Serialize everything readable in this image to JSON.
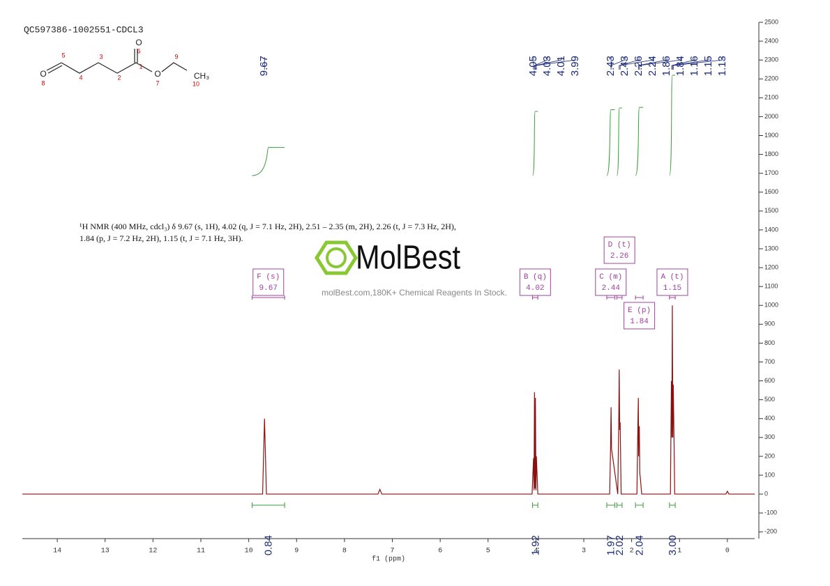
{
  "chart_data": {
    "type": "line",
    "title": "QC597386-1002551-CDCL3",
    "x_label": "f1 (ppm)",
    "description": "¹H NMR (400 MHz, cdcl₃) δ 9.67 (s, 1H), 4.02 (q, J = 7.1 Hz, 2H), 2.51 – 2.35 (m, 2H), 2.26 (t, J = 7.3 Hz, 2H), 1.84 (p, J = 7.2 Hz, 2H), 1.15 (t, J = 7.1 Hz, 3H).",
    "watermark": {
      "name": "MolBest",
      "tagline": "molBest.com,180K+ Chemical Reagents In Stock."
    },
    "structure": {
      "atoms": [
        "O",
        "8",
        "5",
        "4",
        "3",
        "2",
        "1",
        "O",
        "6",
        "O",
        "7",
        "9",
        "CH₃",
        "10"
      ]
    },
    "xlim": [
      14.73,
      -0.57
    ],
    "xticks": [
      14,
      13,
      12,
      11,
      10,
      9,
      8,
      7,
      6,
      5,
      4,
      3,
      2,
      1,
      0
    ],
    "ylim": [
      -236,
      2500
    ],
    "yticks": [
      -200,
      -100,
      0,
      100,
      200,
      300,
      400,
      500,
      600,
      700,
      800,
      900,
      1000,
      1100,
      1200,
      1300,
      1400,
      1500,
      1600,
      1700,
      1800,
      1900,
      2000,
      2100,
      2200,
      2300,
      2400,
      2500
    ],
    "series": [
      {
        "name": "spectrum",
        "color": "#8b1010",
        "x": [
          14.73,
          9.71,
          9.67,
          9.63,
          7.3,
          7.26,
          7.22,
          4.08,
          4.05,
          4.04,
          4.03,
          4.02,
          4.01,
          4.0,
          3.99,
          3.96,
          2.46,
          2.44,
          2.43,
          2.42,
          2.29,
          2.27,
          2.26,
          2.25,
          2.24,
          2.22,
          1.89,
          1.87,
          1.86,
          1.855,
          1.85,
          1.84,
          1.83,
          1.82,
          1.79,
          1.19,
          1.17,
          1.16,
          1.15,
          1.14,
          1.13,
          1.1,
          0.03,
          0,
          -0.03,
          -0.57
        ],
        "values": [
          0,
          0,
          400,
          0,
          0,
          25,
          0,
          0,
          190,
          20,
          540,
          30,
          510,
          20,
          200,
          0,
          0,
          250,
          460,
          240,
          0,
          380,
          660,
          340,
          380,
          0,
          0,
          370,
          510,
          200,
          330,
          360,
          110,
          90,
          0,
          0,
          600,
          300,
          1000,
          300,
          580,
          0,
          0,
          15,
          0,
          0
        ]
      }
    ],
    "peaks": [
      9.67,
      4.05,
      4.03,
      4.01,
      3.99,
      2.43,
      2.43,
      2.26,
      2.24,
      1.86,
      1.84,
      1.16,
      1.15,
      1.13
    ],
    "integrals": {
      "values": [
        0.84,
        1.92,
        1.97,
        2.02,
        2.04,
        3.0
      ],
      "value_labels": [
        "0.84",
        "1.92",
        "1.97",
        "2.02",
        "2.04",
        "3.00"
      ],
      "ranges": [
        [
          9.93,
          9.25
        ],
        [
          4.07,
          3.96
        ],
        [
          2.52,
          2.35
        ],
        [
          2.31,
          2.2
        ],
        [
          1.92,
          1.76
        ],
        [
          1.21,
          1.09
        ]
      ]
    },
    "multiplets": [
      {
        "name": "F (s)",
        "shift": 9.67
      },
      {
        "name": "B (q)",
        "shift": 4.02
      },
      {
        "name": "C (m)",
        "shift": 2.44
      },
      {
        "name": "D (t)",
        "shift": 2.26
      },
      {
        "name": "E (p)",
        "shift": 1.84
      },
      {
        "name": "A (t)",
        "shift": 1.15
      }
    ]
  }
}
